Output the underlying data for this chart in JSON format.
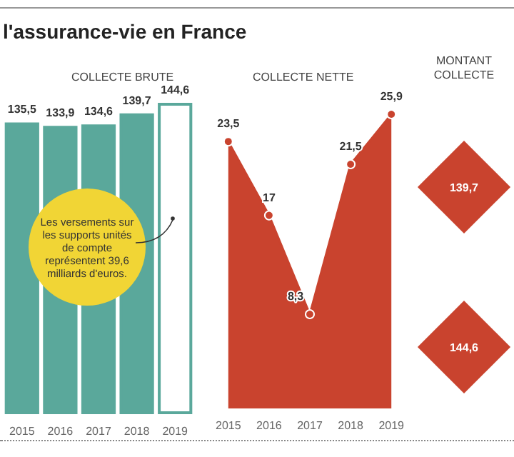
{
  "chart_data": [
    {
      "type": "bar",
      "title": "l'assurance-vie en France",
      "subtitle": "COLLECTE BRUTE",
      "categories": [
        "2015",
        "2016",
        "2017",
        "2018",
        "2019"
      ],
      "values": [
        135.5,
        133.9,
        134.6,
        139.7,
        144.6
      ],
      "color": "#5aa89b",
      "colors": [
        "#5aa89b",
        "#5aa89b",
        "#5aa89b",
        "#5aa89b",
        "#ffffff"
      ],
      "value_labels": [
        "135,5",
        "133,9",
        "134,6",
        "139,7",
        "144,6"
      ],
      "annotations": [
        "Les versements sur les supports unités de compte représentent 39,6 milliards d'euros."
      ]
    },
    {
      "type": "area",
      "title": "COLLECTE NETTE",
      "categories": [
        "2015",
        "2016",
        "2017",
        "2018",
        "2019"
      ],
      "values": [
        23.5,
        17,
        8.3,
        21.5,
        25.9
      ],
      "color": "#c9432e",
      "value_labels": [
        "23,5",
        "17",
        "8,3",
        "21,5",
        "25,9"
      ],
      "marker": "circle"
    },
    {
      "type": "other",
      "title": "MONTANT COLLECTE",
      "categories": [
        null,
        null
      ],
      "values": [
        139.7,
        144.6
      ],
      "color": "#c9432e",
      "value_labels": [
        "139,7",
        "144,6"
      ]
    }
  ]
}
